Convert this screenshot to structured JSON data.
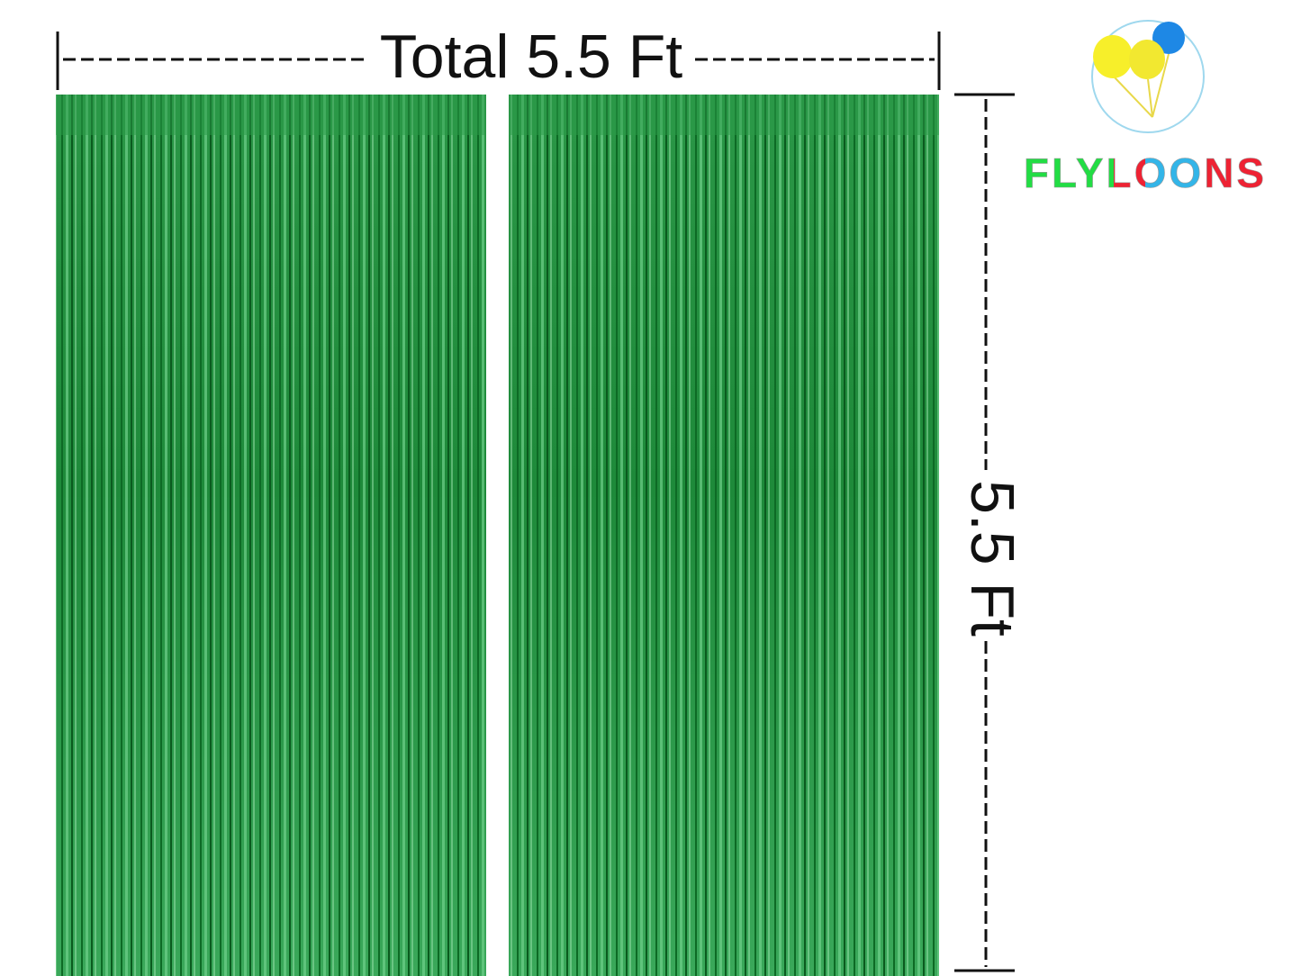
{
  "dimensions": {
    "width_label": "Total 5.5 Ft",
    "height_label": "5.5 Ft"
  },
  "brand": {
    "name": "FLYLOONS"
  }
}
